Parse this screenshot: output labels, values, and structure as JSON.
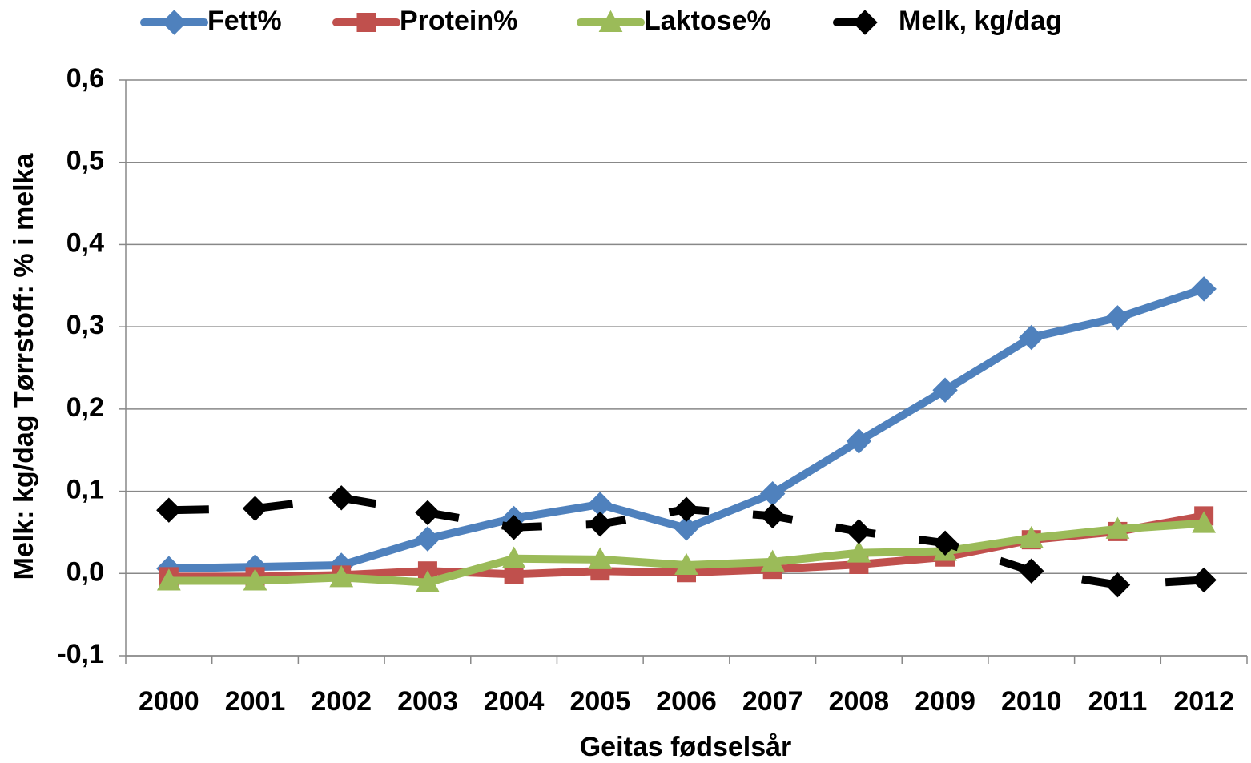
{
  "chart_data": {
    "type": "line",
    "x_label": "Geitas fødselsår",
    "y_label": "Melk: kg/dag  Tørrstoff: % i melka",
    "categories": [
      "2000",
      "2001",
      "2002",
      "2003",
      "2004",
      "2005",
      "2006",
      "2007",
      "2008",
      "2009",
      "2010",
      "2011",
      "2012"
    ],
    "series": [
      {
        "name": "Fett%",
        "color": "#4f81bd",
        "marker": "diamond",
        "dashed": false,
        "values": [
          0.006,
          0.008,
          0.01,
          0.042,
          0.067,
          0.084,
          0.055,
          0.097,
          0.161,
          0.223,
          0.287,
          0.311,
          0.346
        ]
      },
      {
        "name": "Protein%",
        "color": "#c0504d",
        "marker": "square",
        "dashed": false,
        "values": [
          -0.004,
          -0.004,
          -0.002,
          0.003,
          -0.001,
          0.003,
          0.001,
          0.005,
          0.011,
          0.02,
          0.041,
          0.051,
          0.07
        ]
      },
      {
        "name": "Laktose%",
        "color": "#9bbb59",
        "marker": "triangle",
        "dashed": false,
        "values": [
          -0.009,
          -0.009,
          -0.005,
          -0.011,
          0.018,
          0.017,
          0.01,
          0.014,
          0.025,
          0.027,
          0.043,
          0.054,
          0.061
        ]
      },
      {
        "name": "Melk, kg/dag",
        "color": "#000000",
        "marker": "diamond",
        "dashed": true,
        "values": [
          0.077,
          0.079,
          0.092,
          0.074,
          0.056,
          0.06,
          0.078,
          0.07,
          0.051,
          0.037,
          0.003,
          -0.014,
          -0.008
        ]
      }
    ],
    "ylim": [
      -0.1,
      0.6
    ],
    "yticks": [
      {
        "value": -0.1,
        "label": "-0,1"
      },
      {
        "value": 0,
        "label": "0,0"
      },
      {
        "value": 0.1,
        "label": "0,1"
      },
      {
        "value": 0.2,
        "label": "0,2"
      },
      {
        "value": 0.3,
        "label": "0,3"
      },
      {
        "value": 0.4,
        "label": "0,4"
      },
      {
        "value": 0.5,
        "label": "0,5"
      },
      {
        "value": 0.6,
        "label": "0,6"
      }
    ],
    "grid": true,
    "legend": "top"
  }
}
